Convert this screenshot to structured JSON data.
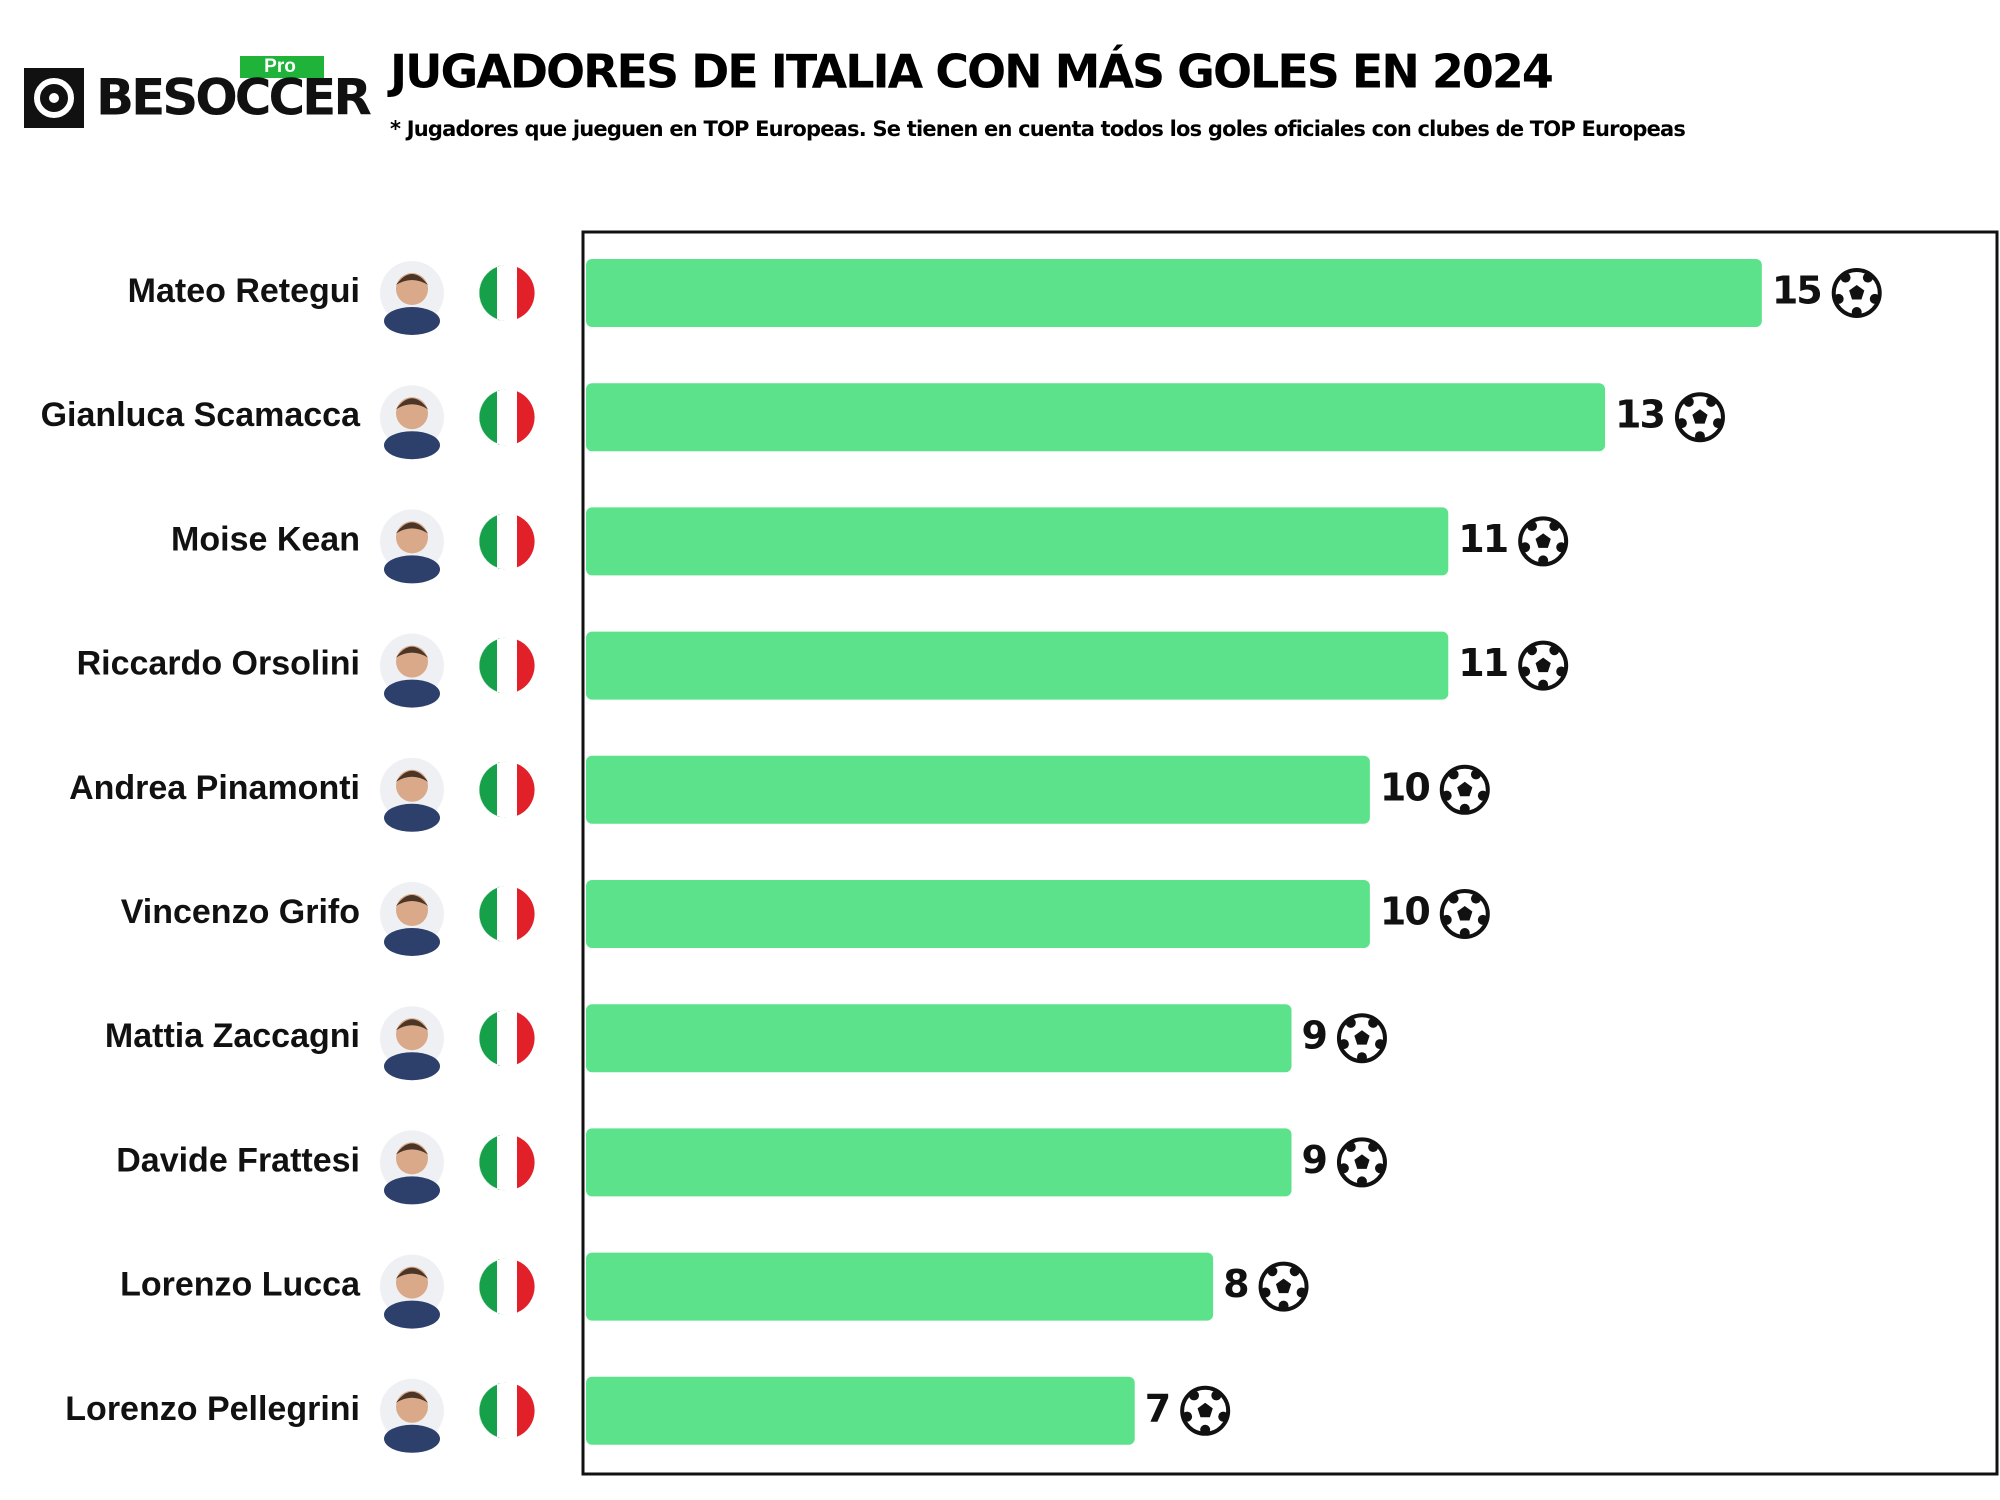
{
  "logo": {
    "name": "BESOCCER",
    "badge": "Pro"
  },
  "chart_data": {
    "type": "bar",
    "orientation": "horizontal",
    "title": "JUGADORES DE ITALIA CON MÁS GOLES EN 2024",
    "subtitle": "* Jugadores que jueguen en TOP Europeas. Se tienen en cuenta todos los goles oficiales con clubes de TOP Europeas",
    "categories": [
      "Mateo Retegui",
      "Gianluca Scamacca",
      "Moise Kean",
      "Riccardo Orsolini",
      "Andrea Pinamonti",
      "Vincenzo Grifo",
      "Mattia Zaccagni",
      "Davide Frattesi",
      "Lorenzo Lucca",
      "Lorenzo Pellegrini"
    ],
    "values": [
      15,
      13,
      11,
      11,
      10,
      10,
      9,
      9,
      8,
      7
    ],
    "color": "#5ce28a",
    "xlim": [
      0,
      18
    ]
  }
}
